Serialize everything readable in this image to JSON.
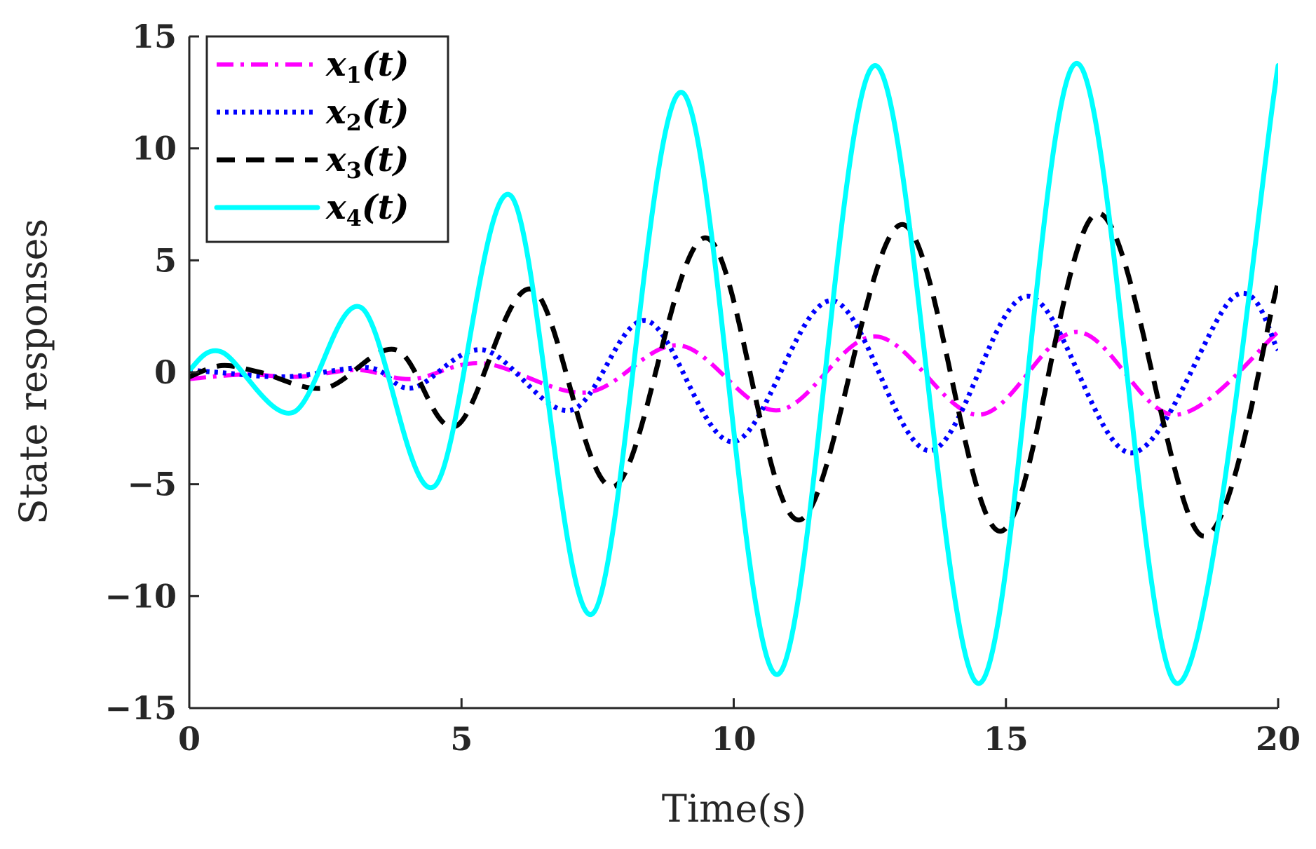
{
  "chart_data": {
    "type": "line",
    "title": "",
    "xlabel": "Time(s)",
    "ylabel": "State responses",
    "xlim": [
      0,
      20
    ],
    "ylim": [
      -15,
      15
    ],
    "xticks": [
      0,
      5,
      10,
      15,
      20
    ],
    "xtick_labels": [
      "0",
      "5",
      "10",
      "15",
      "20"
    ],
    "yticks": [
      -15,
      -10,
      -5,
      0,
      5,
      10,
      15
    ],
    "ytick_labels": [
      "−15",
      "−10",
      "−5",
      "0",
      "5",
      "10",
      "15"
    ],
    "grid": false,
    "legend_location": "top-left",
    "series": [
      {
        "name": "x1(t)",
        "legend_main": "x",
        "legend_sub": "1",
        "legend_tail": "(t)",
        "color": "#ff00ff",
        "style": "dash-dot",
        "x": [
          0,
          1,
          2,
          3.1,
          4.1,
          5.4,
          7.3,
          9.0,
          10.8,
          12.6,
          14.5,
          16.3,
          18.1,
          20
        ],
        "y": [
          -0.3,
          -0.1,
          -0.2,
          0.1,
          -0.3,
          0.4,
          -0.9,
          1.2,
          -1.7,
          1.6,
          -1.9,
          1.8,
          -1.9,
          1.8
        ]
      },
      {
        "name": "x2(t)",
        "legend_main": "x",
        "legend_sub": "2",
        "legend_tail": "(t)",
        "color": "#0000ff",
        "style": "dotted",
        "x": [
          0,
          0.5,
          1.8,
          3.3,
          4.1,
          5.4,
          7.0,
          8.4,
          10.0,
          11.8,
          13.6,
          15.4,
          17.3,
          19.2,
          20
        ],
        "y": [
          0.1,
          0.0,
          -0.2,
          0.2,
          -0.7,
          1.0,
          -1.7,
          2.3,
          -3.1,
          3.2,
          -3.5,
          3.4,
          -3.6,
          3.4,
          1.0
        ]
      },
      {
        "name": "x3(t)",
        "legend_main": "x",
        "legend_sub": "3",
        "legend_tail": "(t)",
        "color": "#000000",
        "style": "dashed",
        "x": [
          0,
          0.6,
          1.3,
          2.5,
          3.8,
          4.9,
          6.3,
          7.8,
          9.5,
          11.2,
          13.1,
          14.9,
          16.7,
          18.6,
          20
        ],
        "y": [
          -0.2,
          0.3,
          0.0,
          -0.7,
          1.0,
          -2.4,
          3.7,
          -5.1,
          6.0,
          -6.6,
          6.6,
          -7.1,
          7.1,
          -7.3,
          4.0
        ]
      },
      {
        "name": "x4(t)",
        "legend_main": "x",
        "legend_sub": "4",
        "legend_tail": "(t)",
        "color": "#00ffff",
        "style": "solid",
        "x": [
          0,
          0.6,
          1.9,
          3.15,
          4.5,
          5.9,
          7.4,
          9.05,
          10.8,
          12.6,
          14.5,
          16.3,
          18.15,
          20
        ],
        "y": [
          0.1,
          0.9,
          -1.8,
          2.9,
          -5.1,
          7.9,
          -10.8,
          12.5,
          -13.5,
          13.7,
          -13.9,
          13.8,
          -13.9,
          13.7
        ]
      }
    ]
  }
}
